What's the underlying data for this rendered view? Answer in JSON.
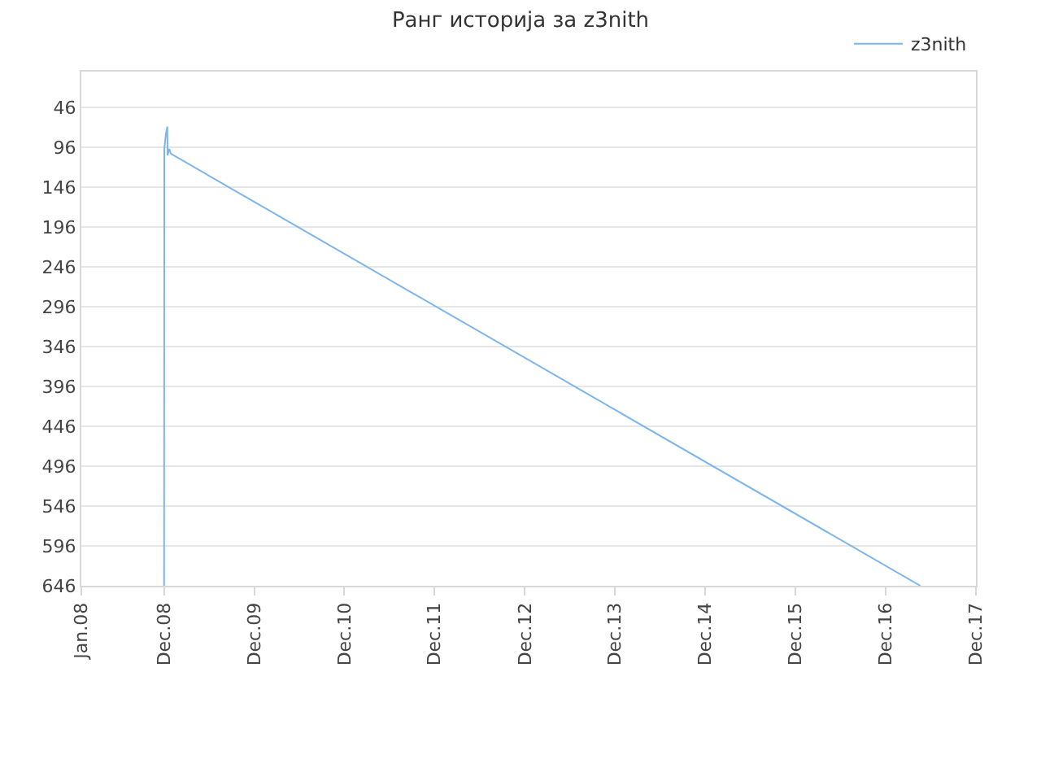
{
  "chart_data": {
    "type": "line",
    "title": "Ранг историја за z3nith",
    "x": [
      "2008-12-01",
      "2008-12-02",
      "2008-12-08",
      "2008-12-14",
      "2008-12-15",
      "2008-12-22",
      "2008-12-28",
      "2017-04-20"
    ],
    "series": [
      {
        "name": "z3nith",
        "color": "#7cb5ec",
        "values": [
          646,
          98,
          80,
          70,
          106,
          98,
          104,
          646
        ]
      }
    ],
    "xlim": [
      "2008-01-01",
      "2017-12-01"
    ],
    "xticks": [
      {
        "value": "2008-01-01",
        "label": "Jan.08"
      },
      {
        "value": "2008-12-01",
        "label": "Dec.08"
      },
      {
        "value": "2009-12-01",
        "label": "Dec.09"
      },
      {
        "value": "2010-12-01",
        "label": "Dec.10"
      },
      {
        "value": "2011-12-01",
        "label": "Dec.11"
      },
      {
        "value": "2012-12-01",
        "label": "Dec.12"
      },
      {
        "value": "2013-12-01",
        "label": "Dec.13"
      },
      {
        "value": "2014-12-01",
        "label": "Dec.14"
      },
      {
        "value": "2015-12-01",
        "label": "Dec.15"
      },
      {
        "value": "2016-12-01",
        "label": "Dec.16"
      },
      {
        "value": "2017-12-01",
        "label": "Dec.17"
      }
    ],
    "ylim": [
      646,
      1
    ],
    "yticks": [
      46,
      96,
      146,
      196,
      246,
      296,
      346,
      396,
      446,
      496,
      546,
      596,
      646
    ],
    "grid": "y",
    "legend": "top right",
    "marker": "none",
    "line_style": "solid"
  }
}
